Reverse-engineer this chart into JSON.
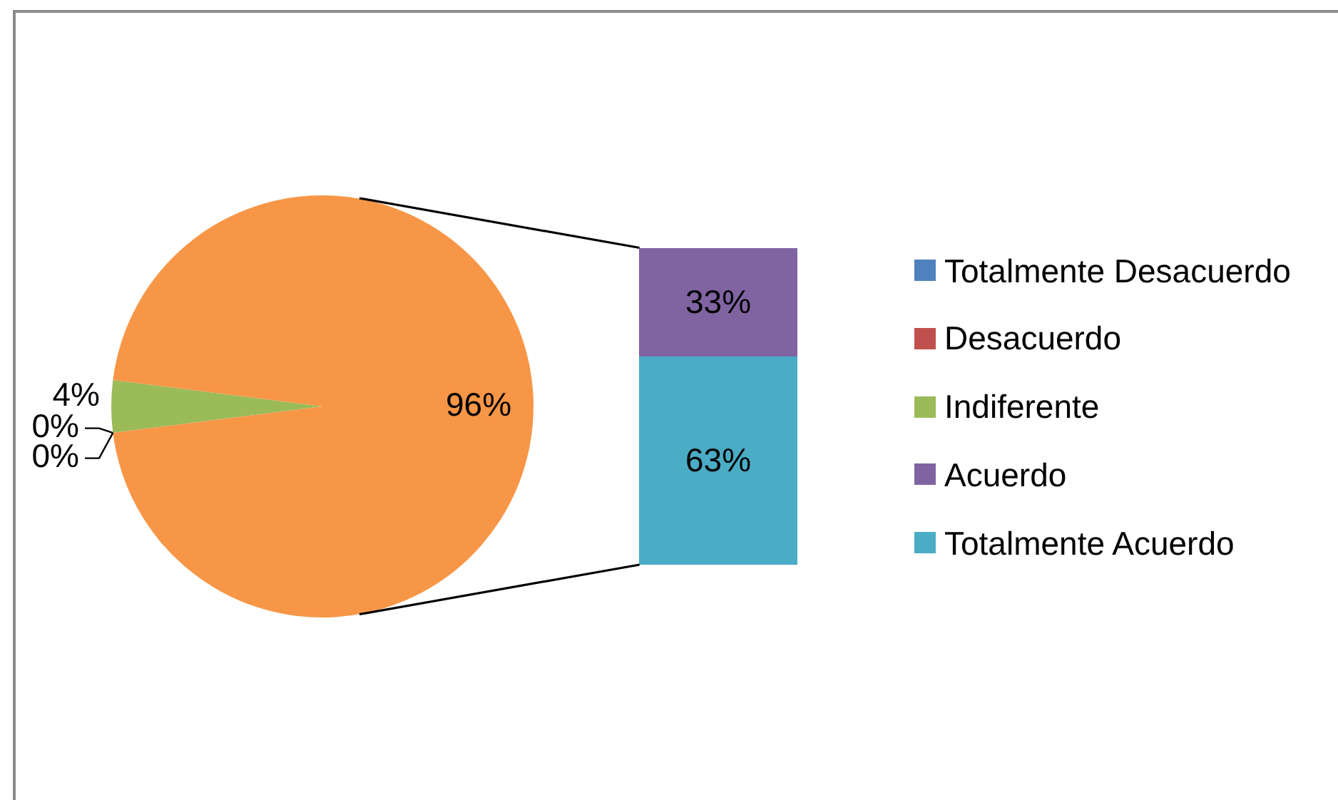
{
  "chart_data": [
    {
      "type": "pie",
      "categories": [
        "Totalmente Desacuerdo",
        "Desacuerdo",
        "Indiferente",
        null
      ],
      "values": [
        0,
        0,
        4,
        96
      ],
      "colors": [
        "#4f81bd",
        "#c0504d",
        "#9bbb59",
        "#f79646"
      ],
      "value_labels": [
        "0%",
        "0%",
        "4%",
        "96%"
      ],
      "legend": "right"
    },
    {
      "type": "bar",
      "stacked": true,
      "categories": [
        null
      ],
      "series": [
        {
          "name": "Totalmente Acuerdo",
          "color": "#4bacc6",
          "values": [
            63
          ],
          "value_labels": [
            "63%"
          ]
        },
        {
          "name": "Acuerdo",
          "color": "#8064a2",
          "values": [
            33
          ],
          "value_labels": [
            "33%"
          ]
        }
      ],
      "tick_labels": false,
      "legend": "right"
    }
  ]
}
